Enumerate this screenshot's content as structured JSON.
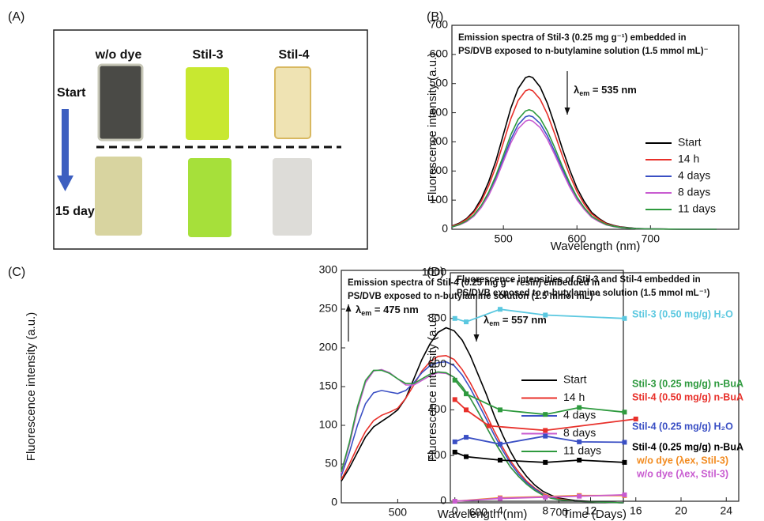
{
  "panel_a": {
    "panel_label": "(A)",
    "columns": [
      "w/o dye",
      "Stil-3",
      "Stil-4"
    ],
    "rows": [
      "Start",
      "15 days"
    ]
  },
  "chart_data": [
    {
      "type": "line",
      "panel_label": "(B)",
      "title": [
        "Emission spectra of Stil-3 (0.25 mg g⁻¹) embedded in",
        "PS/DVB exposed to n-butylamine solution (1.5 mmol mL)⁻"
      ],
      "x_label": "Wavelength (nm)",
      "y_label": "Fluorescence intensity (a.u.)",
      "xlim": [
        430,
        820
      ],
      "xticks": [
        500,
        600,
        700
      ],
      "ylim": [
        0,
        700
      ],
      "yticks": [
        0,
        100,
        200,
        300,
        400,
        500,
        600,
        700
      ],
      "annotations": [
        {
          "symbol": "λ",
          "sub": "em",
          "rest": " = 535 nm",
          "direction": "down"
        }
      ],
      "x": [
        430,
        440,
        450,
        460,
        470,
        480,
        490,
        500,
        510,
        520,
        530,
        535,
        540,
        550,
        560,
        570,
        580,
        590,
        600,
        610,
        620,
        630,
        640,
        650,
        660,
        680,
        700,
        750,
        790
      ],
      "series": [
        {
          "name": "Start",
          "color": "#000000",
          "values": [
            11,
            21,
            37,
            63,
            105,
            163,
            236,
            326,
            415,
            483,
            520,
            525,
            520,
            488,
            431,
            357,
            278,
            205,
            142,
            95,
            58,
            37,
            21,
            13,
            8,
            3,
            1,
            0,
            0
          ]
        },
        {
          "name": "14 h",
          "color": "#e8302a",
          "values": [
            10,
            19,
            34,
            58,
            96,
            149,
            216,
            298,
            379,
            442,
            475,
            480,
            475,
            446,
            394,
            326,
            254,
            187,
            130,
            86,
            53,
            34,
            19,
            12,
            7,
            2,
            1,
            0,
            0
          ]
        },
        {
          "name": "4 days",
          "color": "#3a4fc4",
          "values": [
            8,
            16,
            27,
            47,
            78,
            121,
            176,
            242,
            308,
            359,
            386,
            390,
            386,
            363,
            320,
            265,
            207,
            152,
            105,
            70,
            43,
            27,
            16,
            10,
            6,
            2,
            1,
            0,
            0
          ]
        },
        {
          "name": "8 days",
          "color": "#c85bd0",
          "values": [
            8,
            15,
            26,
            45,
            75,
            116,
            169,
            233,
            296,
            345,
            371,
            375,
            371,
            349,
            308,
            255,
            199,
            146,
            101,
            68,
            41,
            26,
            15,
            9,
            6,
            2,
            1,
            0,
            0
          ]
        },
        {
          "name": "11 days",
          "color": "#2e9a3e",
          "values": [
            8,
            16,
            29,
            49,
            82,
            127,
            185,
            254,
            324,
            377,
            406,
            410,
            406,
            381,
            336,
            279,
            217,
            160,
            111,
            74,
            45,
            29,
            16,
            10,
            6,
            2,
            1,
            0,
            0
          ]
        }
      ]
    },
    {
      "type": "line",
      "panel_label": "(C)",
      "title": [
        "Emission spectra of Stil-4 (0.25 mg g⁻¹ resin) embedded in",
        "PS/DVB exposed to n-butylamine solution (1.5 mmol mL)⁻¹"
      ],
      "x_label": "Wavelength (nm)",
      "y_label": "Fluorescence intensity (a.u.)",
      "xlim": [
        430,
        780
      ],
      "xticks": [
        500,
        600,
        700
      ],
      "ylim": [
        0,
        300
      ],
      "yticks": [
        0,
        50,
        100,
        150,
        200,
        250,
        300
      ],
      "annotations": [
        {
          "symbol": "λ",
          "sub": "em",
          "rest": " = 475 nm",
          "direction": "up"
        },
        {
          "symbol": "λ",
          "sub": "em",
          "rest": " = 557 nm",
          "direction": "down"
        }
      ],
      "x": [
        430,
        440,
        450,
        460,
        470,
        480,
        490,
        500,
        510,
        520,
        530,
        540,
        550,
        560,
        570,
        580,
        590,
        600,
        610,
        620,
        630,
        640,
        650,
        660,
        670,
        680,
        690,
        700,
        720,
        750,
        780
      ],
      "series": [
        {
          "name": "Start",
          "color": "#000000",
          "values": [
            28,
            45,
            65,
            85,
            98,
            105,
            112,
            120,
            135,
            160,
            185,
            205,
            220,
            226,
            222,
            210,
            190,
            165,
            140,
            112,
            88,
            66,
            48,
            34,
            23,
            15,
            10,
            6,
            3,
            1,
            0
          ]
        },
        {
          "name": "14 h",
          "color": "#e8302a",
          "values": [
            30,
            50,
            72,
            92,
            106,
            113,
            117,
            122,
            135,
            152,
            170,
            182,
            189,
            190,
            185,
            172,
            155,
            135,
            114,
            92,
            72,
            54,
            40,
            28,
            19,
            12,
            8,
            5,
            2,
            1,
            0
          ]
        },
        {
          "name": "4 days",
          "color": "#3a4fc4",
          "values": [
            35,
            65,
            100,
            128,
            142,
            145,
            143,
            141,
            145,
            155,
            168,
            177,
            181,
            182,
            177,
            165,
            148,
            128,
            108,
            87,
            68,
            51,
            37,
            26,
            18,
            11,
            7,
            4,
            2,
            1,
            0
          ]
        },
        {
          "name": "8 days",
          "color": "#c85bd0",
          "values": [
            38,
            75,
            120,
            155,
            170,
            172,
            168,
            160,
            152,
            152,
            158,
            164,
            168,
            167,
            162,
            150,
            135,
            117,
            98,
            79,
            62,
            46,
            34,
            24,
            16,
            10,
            6,
            4,
            2,
            1,
            0
          ]
        },
        {
          "name": "11 days",
          "color": "#2e9a3e",
          "values": [
            40,
            78,
            124,
            158,
            171,
            171,
            167,
            160,
            154,
            154,
            160,
            166,
            169,
            168,
            162,
            150,
            135,
            117,
            98,
            79,
            62,
            46,
            34,
            24,
            16,
            10,
            6,
            4,
            2,
            1,
            0
          ]
        }
      ]
    },
    {
      "type": "line",
      "markers": true,
      "panel_label": "(D)",
      "title": [
        "Fluorescence intensities of Stil-3 and Stil-4 embedded in",
        "PS/DVB exposed to n-butylamine solution (1.5 mmol mL⁻¹)"
      ],
      "x_label": "Time (Days)",
      "y_label": "Fluorescence intensity (a.u.)",
      "xlim": [
        -0.4,
        25.1
      ],
      "xticks": [
        0,
        4,
        8,
        12,
        16,
        20,
        24
      ],
      "ylim": [
        0,
        1000
      ],
      "yticks": [
        0,
        200,
        400,
        600,
        800,
        1000
      ],
      "series": [
        {
          "name": "Stil-3 (0.50 mg/g) H₂O",
          "color": "#5bc8e0",
          "x": [
            0,
            1,
            4,
            8,
            15
          ],
          "values": [
            800,
            785,
            840,
            815,
            800
          ]
        },
        {
          "name": "Stil-3 (0.25 mg/g) n-BuA",
          "color": "#2e9a3e",
          "x": [
            0,
            1,
            4,
            8,
            11,
            15
          ],
          "values": [
            530,
            470,
            400,
            380,
            410,
            390
          ]
        },
        {
          "name": "Stil-4 (0.50 mg/g) n-BuA",
          "color": "#e8302a",
          "x": [
            0,
            1,
            3,
            8,
            16
          ],
          "values": [
            445,
            400,
            330,
            310,
            360
          ]
        },
        {
          "name": "Stil-4 (0.25 mg/g) H₂O",
          "color": "#3a4fc4",
          "x": [
            0,
            1,
            4,
            8,
            11,
            15
          ],
          "values": [
            260,
            280,
            250,
            285,
            260,
            258
          ]
        },
        {
          "name": "Stil-4 (0.25 mg/g) n-BuA",
          "color": "#000000",
          "x": [
            0,
            1,
            4,
            8,
            11,
            15
          ],
          "values": [
            215,
            195,
            180,
            170,
            180,
            170
          ]
        },
        {
          "name": "w/o dye (λex, Stil-3)",
          "color": "#f28a1e",
          "x": [
            0,
            4,
            8,
            11,
            15
          ],
          "values": [
            0,
            15,
            20,
            25,
            25
          ]
        },
        {
          "name": "w/o dye (λex, Stil-3)",
          "color": "#c85bd0",
          "x": [
            0,
            4,
            8,
            11,
            15
          ],
          "values": [
            0,
            12,
            18,
            22,
            28
          ]
        }
      ]
    }
  ]
}
